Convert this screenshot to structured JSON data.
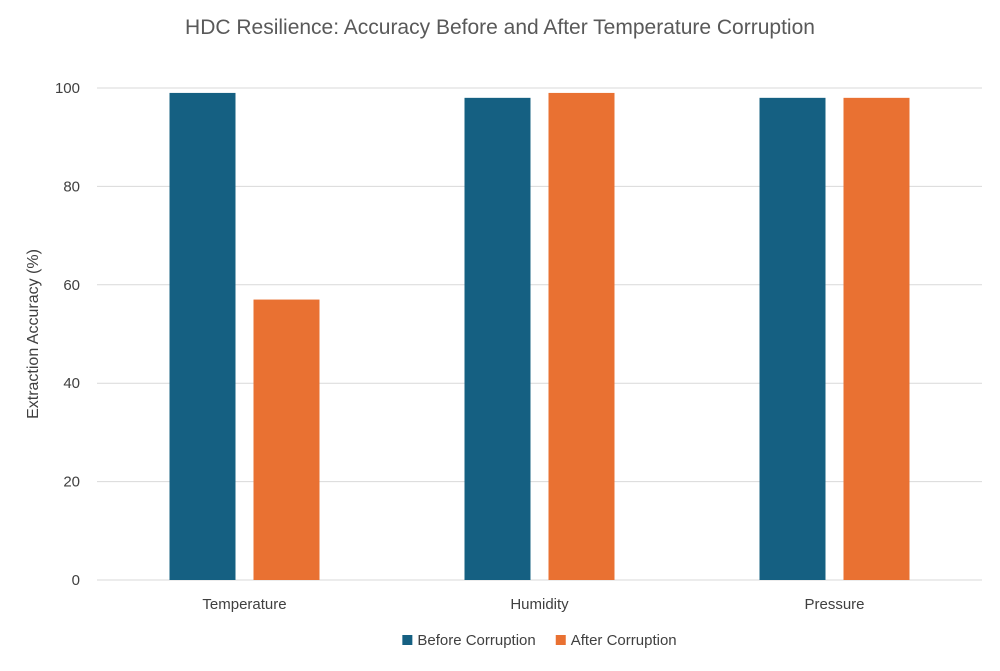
{
  "chart_data": {
    "type": "bar",
    "title": "HDC Resilience: Accuracy Before and After Temperature Corruption",
    "xlabel": "",
    "ylabel": "Extraction Accuracy (%)",
    "categories": [
      "Temperature",
      "Humidity",
      "Pressure"
    ],
    "series": [
      {
        "name": "Before Corruption",
        "values": [
          99,
          98,
          98
        ],
        "color": "#156082"
      },
      {
        "name": "After Corruption",
        "values": [
          57,
          99,
          98
        ],
        "color": "#e97132"
      }
    ],
    "ylim": [
      0,
      100
    ],
    "yticks": [
      0,
      20,
      40,
      60,
      80,
      100
    ],
    "grid": true,
    "legend_position": "bottom"
  }
}
